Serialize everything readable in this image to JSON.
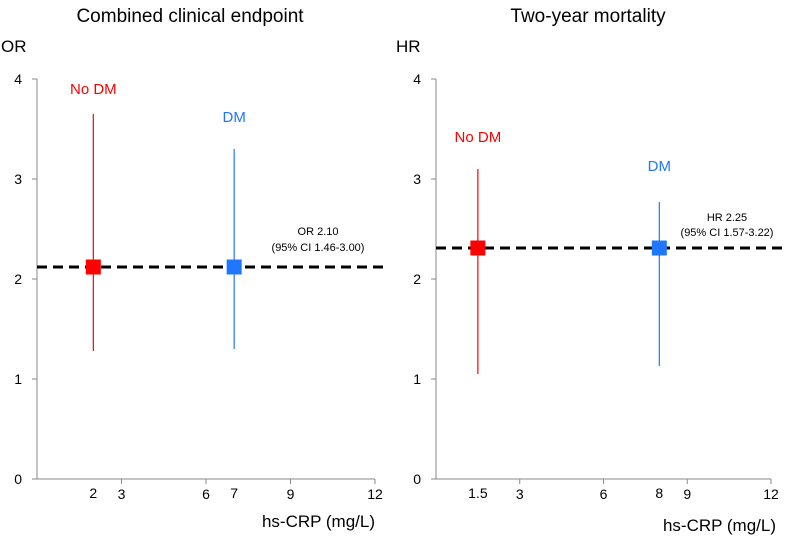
{
  "chart_data": [
    {
      "type": "scatter",
      "title": "Combined clinical endpoint",
      "ylabel": "OR",
      "xlabel": "hs-CRP (mg/L)",
      "ylim": [
        0,
        4
      ],
      "xlim": [
        0,
        12
      ],
      "yticks": [
        0,
        1,
        2,
        3,
        4
      ],
      "xticks": [
        3,
        6,
        9,
        12
      ],
      "reference_line": {
        "value": 2.12,
        "style": "dashed"
      },
      "annotation": {
        "line1": "OR 2.10",
        "line2": "(95% CI 1.46-3.00)"
      },
      "series": [
        {
          "name": "No DM",
          "color": "#ff0000",
          "x": 2,
          "x_label": "2",
          "y": 2.12,
          "ci_low": 1.28,
          "ci_high": 3.65,
          "label_y": 3.9
        },
        {
          "name": "DM",
          "color": "#1f77ff",
          "x": 7,
          "x_label": "7",
          "y": 2.12,
          "ci_low": 1.3,
          "ci_high": 3.3,
          "label_y": 3.62
        }
      ]
    },
    {
      "type": "scatter",
      "title": "Two-year mortality",
      "ylabel": "HR",
      "xlabel": "hs-CRP (mg/L)",
      "ylim": [
        0,
        4
      ],
      "xlim": [
        0,
        12
      ],
      "yticks": [
        0,
        1,
        2,
        3,
        4
      ],
      "xticks": [
        3,
        6,
        9,
        12
      ],
      "reference_line": {
        "value": 2.31,
        "style": "dashed"
      },
      "annotation": {
        "line1": "HR 2.25",
        "line2": "(95% CI 1.57-3.22)"
      },
      "series": [
        {
          "name": "No DM",
          "color": "#ff0000",
          "x": 1.5,
          "x_label": "1.5",
          "y": 2.31,
          "ci_low": 1.05,
          "ci_high": 3.1,
          "label_y": 3.42
        },
        {
          "name": "DM",
          "color": "#1f77ff",
          "x": 8,
          "x_label": "8",
          "y": 2.31,
          "ci_low": 1.13,
          "ci_high": 2.77,
          "label_y": 3.13
        }
      ]
    }
  ]
}
